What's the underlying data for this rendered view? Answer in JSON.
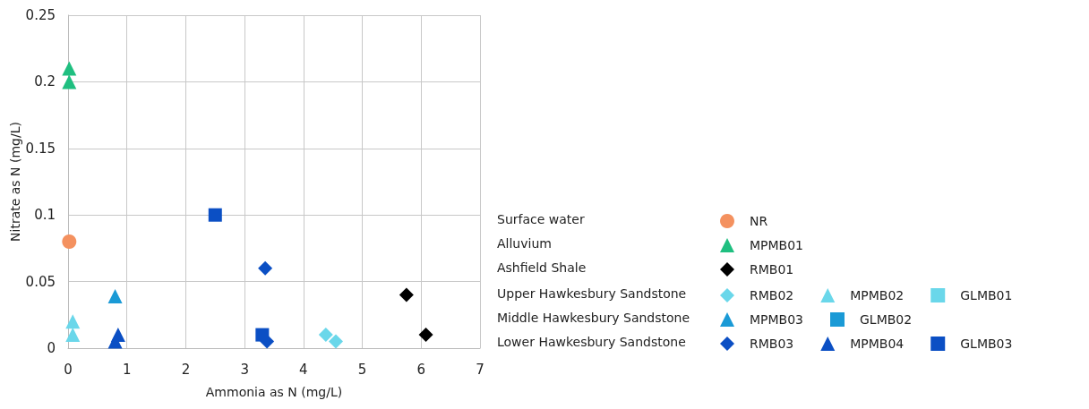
{
  "chart_data": {
    "type": "scatter",
    "xlabel": "Ammonia as N (mg/L)",
    "ylabel": "Nitrate as N (mg/L)",
    "xlim": [
      0,
      7
    ],
    "xticks": [
      0,
      1,
      2,
      3,
      4,
      5,
      6,
      7
    ],
    "ylim": [
      0,
      0.25
    ],
    "yticks": [
      0,
      0.05,
      0.1,
      0.15,
      0.2,
      0.25
    ],
    "grid": true,
    "legend": "right",
    "annotations": [
      "Surface water",
      "Alluvium",
      "Ashfield Shale",
      "Upper Hawkesbury Sandstone",
      "Middle Hawkesbury Sandstone",
      "Lower Hawkesbury Sandstone"
    ],
    "series": [
      {
        "name": "NR",
        "color": "#f4915f",
        "marker": "circle",
        "x": [
          0.02
        ],
        "values": [
          0.08
        ]
      },
      {
        "name": "MPMB01",
        "color": "#1fbf80",
        "marker": "triangle",
        "x": [
          0.02,
          0.02
        ],
        "values": [
          0.21,
          0.2
        ]
      },
      {
        "name": "RMB01",
        "color": "#000000",
        "marker": "diamond",
        "x": [
          5.75,
          6.08
        ],
        "values": [
          0.04,
          0.01
        ]
      },
      {
        "name": "RMB02",
        "color": "#6ad7ea",
        "marker": "diamond",
        "x": [
          4.38,
          4.55
        ],
        "values": [
          0.01,
          0.005
        ]
      },
      {
        "name": "MPMB02",
        "color": "#6ad7ea",
        "marker": "triangle",
        "x": [
          0.08,
          0.08
        ],
        "values": [
          0.02,
          0.01
        ]
      },
      {
        "name": "GLMB01",
        "color": "#6ad7ea",
        "marker": "square"
      },
      {
        "name": "MPMB03",
        "color": "#1a9ad6",
        "marker": "triangle",
        "x": [
          0.8
        ],
        "values": [
          0.039
        ]
      },
      {
        "name": "GLMB02",
        "color": "#1a9ad6",
        "marker": "square"
      },
      {
        "name": "RMB03",
        "color": "#0b4fc4",
        "marker": "diamond",
        "x": [
          3.35,
          3.38
        ],
        "values": [
          0.06,
          0.005
        ]
      },
      {
        "name": "MPMB04",
        "color": "#0b4fc4",
        "marker": "triangle",
        "x": [
          0.8,
          0.85
        ],
        "values": [
          0.005,
          0.01
        ]
      },
      {
        "name": "GLMB03",
        "color": "#0b4fc4",
        "marker": "square",
        "x": [
          2.5,
          3.3
        ],
        "values": [
          0.1,
          0.01
        ]
      }
    ]
  }
}
